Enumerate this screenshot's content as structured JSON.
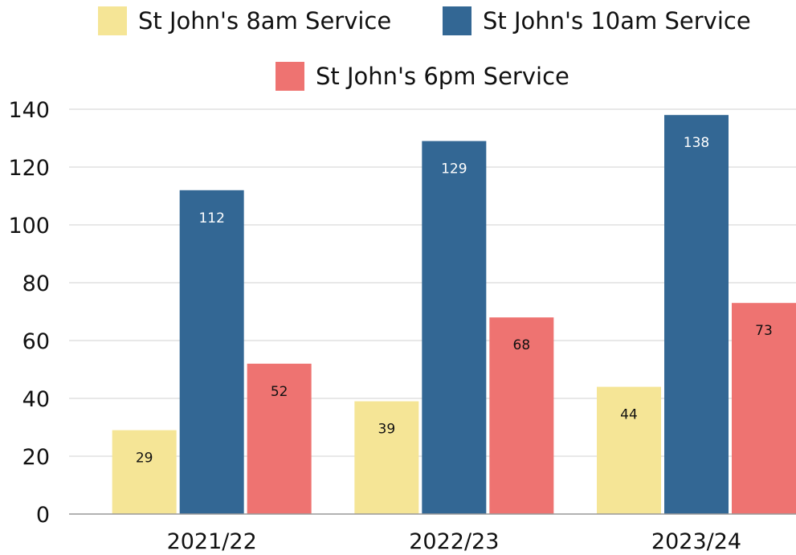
{
  "chart_data": {
    "type": "bar",
    "title": "",
    "xlabel": "",
    "ylabel": "",
    "categories": [
      "2021/22",
      "2022/23",
      "2023/24"
    ],
    "series": [
      {
        "name": "St John's 8am Service",
        "color": "#F5E596",
        "label_color": "#111111",
        "values": [
          29,
          39,
          44
        ]
      },
      {
        "name": "St John's 10am Service",
        "color": "#336794",
        "label_color": "#ffffff",
        "values": [
          112,
          129,
          138
        ]
      },
      {
        "name": "St John's 6pm Service",
        "color": "#EE7371",
        "label_color": "#111111",
        "values": [
          52,
          68,
          73
        ]
      }
    ],
    "ylim": [
      0,
      140
    ],
    "yticks": [
      0,
      20,
      40,
      60,
      80,
      100,
      120,
      140
    ],
    "grid": true,
    "legend": "top"
  }
}
